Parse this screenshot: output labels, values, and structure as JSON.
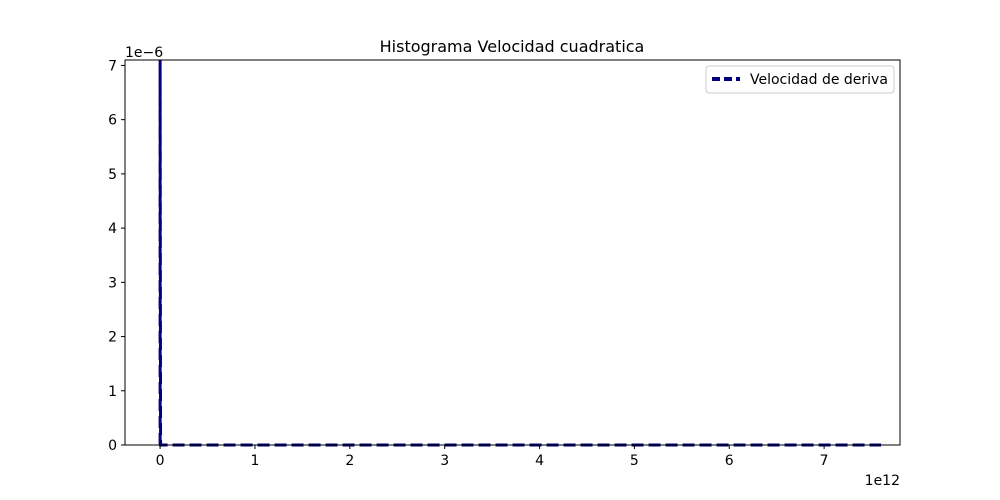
{
  "chart_data": {
    "type": "line",
    "title": "Histograma Velocidad cuadratica",
    "xlabel": "",
    "ylabel": "",
    "x_offset_label": "1e12",
    "y_offset_label": "1e−6",
    "xlim": [
      -0.37,
      7.8
    ],
    "ylim": [
      0,
      7.1
    ],
    "x_ticks": [
      0,
      1,
      2,
      3,
      4,
      5,
      6,
      7
    ],
    "y_ticks": [
      0,
      1,
      2,
      3,
      4,
      5,
      6,
      7
    ],
    "grid": false,
    "legend_position": "upper-right",
    "series": [
      {
        "name": "Velocidad de deriva",
        "color": "#000080",
        "line_style": "dashed",
        "x": [
          0,
          0,
          0.005,
          7.6
        ],
        "y": [
          0,
          7.1,
          0,
          0
        ]
      }
    ]
  }
}
